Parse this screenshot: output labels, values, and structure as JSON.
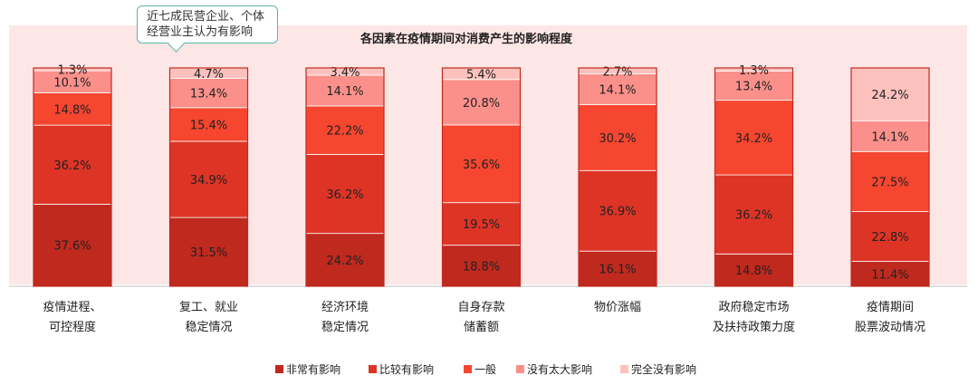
{
  "chart_data": {
    "type": "bar",
    "stacked": true,
    "percent": true,
    "title": "各因素在疫情期间对消费产生的影响程度",
    "categories": [
      [
        "疫情进程、",
        "可控程度"
      ],
      [
        "复工、就业",
        "稳定情况"
      ],
      [
        "经济环境",
        "稳定情况"
      ],
      [
        "自身存款",
        "储蓄额"
      ],
      [
        "物价涨幅"
      ],
      [
        "政府稳定市场",
        "及扶持政策力度"
      ],
      [
        "疫情期间",
        "股票波动情况"
      ]
    ],
    "series": [
      {
        "name": "非常有影响",
        "color": "#c0291e",
        "values": [
          37.6,
          31.5,
          24.2,
          18.8,
          16.1,
          14.8,
          11.4
        ]
      },
      {
        "name": "比较有影响",
        "color": "#de3426",
        "values": [
          36.2,
          34.9,
          36.2,
          19.5,
          36.9,
          36.2,
          22.8
        ]
      },
      {
        "name": "一般",
        "color": "#f64630",
        "values": [
          14.8,
          15.4,
          22.2,
          35.6,
          30.2,
          34.2,
          27.5
        ]
      },
      {
        "name": "没有太大影响",
        "color": "#fb908a",
        "values": [
          10.1,
          13.4,
          14.1,
          20.8,
          14.1,
          13.4,
          14.1
        ]
      },
      {
        "name": "完全没有影响",
        "color": "#fcc1bd",
        "values": [
          1.3,
          4.7,
          3.4,
          5.4,
          2.7,
          1.3,
          24.2
        ]
      }
    ],
    "ylim": [
      0,
      100
    ],
    "legend_position": "bottom",
    "background_color": "#fde6e6"
  },
  "annotation": {
    "text_lines": [
      "近七成民营企业、个体",
      "经营业主认为有影响"
    ]
  }
}
